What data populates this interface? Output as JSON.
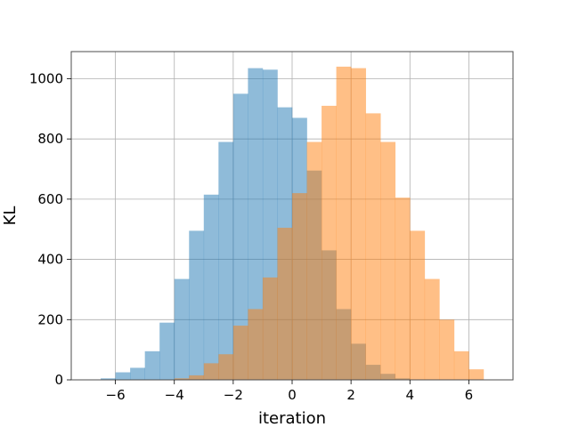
{
  "chart_data": {
    "type": "bar",
    "xlabel": "iteration",
    "ylabel": "KL",
    "xlim": [
      -7.5,
      7.5
    ],
    "ylim": [
      0,
      1090
    ],
    "grid": true,
    "xticks": [
      -6,
      -4,
      -2,
      0,
      2,
      4,
      6
    ],
    "yticks": [
      0,
      200,
      400,
      600,
      800,
      1000
    ],
    "bin_width": 0.5,
    "series": [
      {
        "color": "#1f77b4",
        "alpha": 0.5,
        "bin_left_edges": [
          -6.5,
          -6.0,
          -5.5,
          -5.0,
          -4.5,
          -4.0,
          -3.5,
          -3.0,
          -2.5,
          -2.0,
          -1.5,
          -1.0,
          -0.5,
          0.0,
          0.5,
          1.0,
          1.5,
          2.0,
          2.5,
          3.0,
          3.5
        ],
        "values": [
          5,
          25,
          40,
          95,
          190,
          335,
          495,
          615,
          790,
          950,
          1035,
          1030,
          905,
          870,
          695,
          430,
          235,
          120,
          50,
          20,
          5
        ]
      },
      {
        "color": "#ff7f0e",
        "alpha": 0.5,
        "bin_left_edges": [
          -4.0,
          -3.5,
          -3.0,
          -2.5,
          -2.0,
          -1.5,
          -1.0,
          -0.5,
          0.0,
          0.5,
          1.0,
          1.5,
          2.0,
          2.5,
          3.0,
          3.5,
          4.0,
          4.5,
          5.0,
          5.5,
          6.0
        ],
        "values": [
          5,
          15,
          55,
          85,
          180,
          235,
          340,
          505,
          620,
          790,
          910,
          1040,
          1035,
          885,
          790,
          605,
          495,
          335,
          200,
          95,
          35
        ]
      }
    ]
  }
}
